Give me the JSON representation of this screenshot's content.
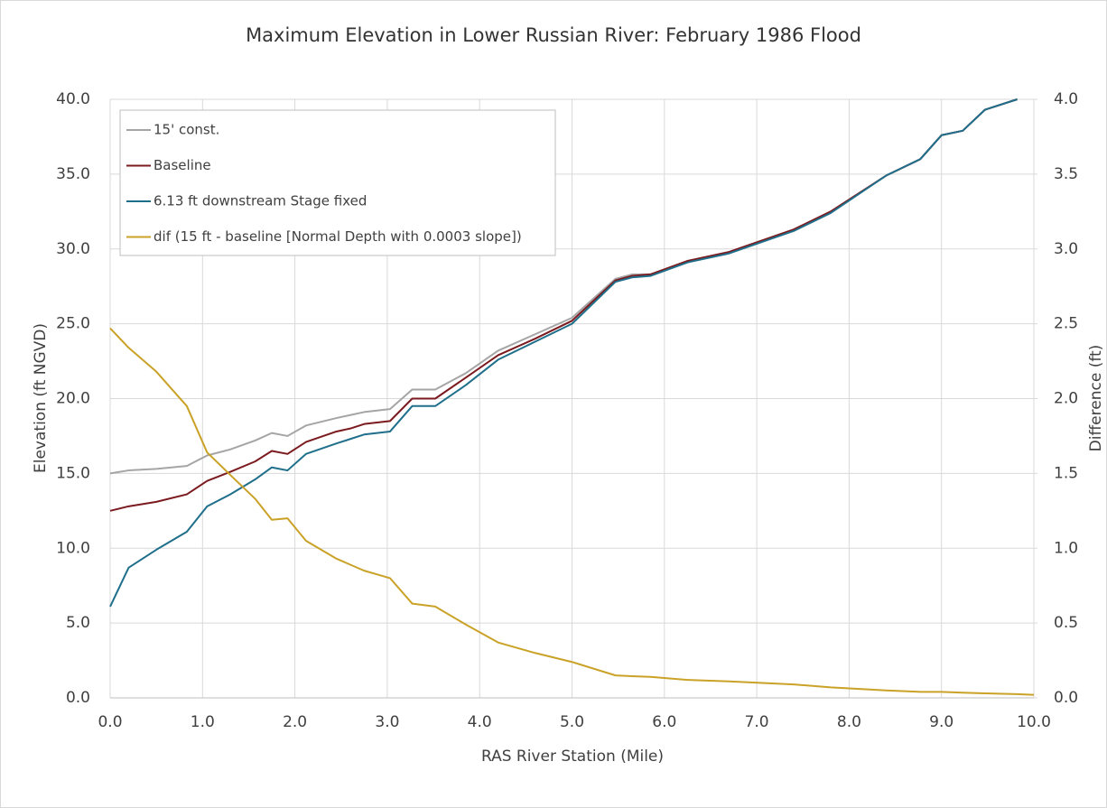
{
  "chart_data": {
    "type": "line",
    "title": "Maximum Elevation in Lower Russian River: February 1986 Flood",
    "x_label": "RAS River Station (Mile)",
    "y_label": "Elevation (ft NGVD)",
    "y2_label": "Difference (ft)",
    "x": [
      0,
      0.2,
      0.5,
      0.83,
      1.05,
      1.3,
      1.57,
      1.75,
      1.92,
      2.12,
      2.45,
      2.6,
      2.75,
      3.03,
      3.27,
      3.52,
      3.85,
      4.2,
      4.6,
      5.0,
      5.47,
      5.65,
      5.85,
      6.25,
      6.7,
      7.4,
      7.8,
      8.4,
      8.77,
      9.0,
      9.23,
      9.47,
      9.82,
      10.0
    ],
    "series": [
      {
        "name": "15' const.",
        "color": "#a5a5a5",
        "values": [
          15.0,
          15.2,
          15.3,
          15.5,
          16.2,
          16.6,
          17.2,
          17.7,
          17.5,
          18.2,
          18.7,
          18.9,
          19.1,
          19.3,
          20.6,
          20.6,
          21.7,
          23.2,
          24.3,
          25.4,
          28.0,
          28.3,
          28.3,
          29.2,
          29.8,
          31.3,
          32.5,
          34.9,
          36.0,
          37.6,
          37.9,
          39.3,
          40.0,
          null
        ]
      },
      {
        "name": "Baseline",
        "color": "#7b1a1f",
        "values": [
          12.5,
          12.8,
          13.1,
          13.6,
          14.5,
          15.1,
          15.8,
          16.5,
          16.3,
          17.1,
          17.8,
          18.0,
          18.3,
          18.5,
          20.0,
          20.0,
          21.4,
          22.9,
          24.0,
          25.2,
          27.9,
          28.2,
          28.3,
          29.2,
          29.8,
          31.3,
          32.5,
          34.9,
          36.0,
          37.6,
          37.9,
          39.3,
          40.0,
          null
        ]
      },
      {
        "name": "6.13 ft downstream Stage fixed",
        "color": "#1f6f8b",
        "values": [
          6.1,
          8.7,
          9.9,
          11.1,
          12.8,
          13.6,
          14.6,
          15.4,
          15.2,
          16.3,
          17.0,
          17.3,
          17.6,
          17.8,
          19.5,
          19.5,
          20.9,
          22.6,
          23.8,
          25.0,
          27.8,
          28.1,
          28.2,
          29.1,
          29.7,
          31.2,
          32.4,
          34.9,
          36.0,
          37.6,
          37.9,
          39.3,
          40.0,
          null
        ]
      },
      {
        "name": "dif (15 ft - baseline [Normal Depth with 0.0003 slope])",
        "color": "#c9a227",
        "axis": "y2",
        "values": [
          2.47,
          2.34,
          2.18,
          1.95,
          1.64,
          1.49,
          1.33,
          1.19,
          1.2,
          1.05,
          0.93,
          0.89,
          0.85,
          0.8,
          0.63,
          0.61,
          0.49,
          0.37,
          0.3,
          0.24,
          0.15,
          0.145,
          0.14,
          0.12,
          0.11,
          0.09,
          0.07,
          0.05,
          0.04,
          0.04,
          0.035,
          0.03,
          0.025,
          0.02
        ]
      }
    ],
    "xlim": [
      0,
      10
    ],
    "xticks": [
      {
        "value": 0,
        "label": "0.0"
      },
      {
        "value": 1,
        "label": "1.0"
      },
      {
        "value": 2,
        "label": "2.0"
      },
      {
        "value": 3,
        "label": "3.0"
      },
      {
        "value": 4,
        "label": "4.0"
      },
      {
        "value": 5,
        "label": "5.0"
      },
      {
        "value": 6,
        "label": "6.0"
      },
      {
        "value": 7,
        "label": "7.0"
      },
      {
        "value": 8,
        "label": "8.0"
      },
      {
        "value": 9,
        "label": "9.0"
      },
      {
        "value": 10,
        "label": "10.0"
      }
    ],
    "ylim": [
      0,
      40
    ],
    "yticks": [
      {
        "value": 0,
        "label": "0.0"
      },
      {
        "value": 5,
        "label": "5.0"
      },
      {
        "value": 10,
        "label": "10.0"
      },
      {
        "value": 15,
        "label": "15.0"
      },
      {
        "value": 20,
        "label": "20.0"
      },
      {
        "value": 25,
        "label": "25.0"
      },
      {
        "value": 30,
        "label": "30.0"
      },
      {
        "value": 35,
        "label": "35.0"
      },
      {
        "value": 40,
        "label": "40.0"
      }
    ],
    "y2lim": [
      0,
      4
    ],
    "y2ticks": [
      {
        "value": 0,
        "label": "0.0"
      },
      {
        "value": 0.5,
        "label": "0.5"
      },
      {
        "value": 1,
        "label": "1.0"
      },
      {
        "value": 1.5,
        "label": "1.5"
      },
      {
        "value": 2,
        "label": "2.0"
      },
      {
        "value": 2.5,
        "label": "2.5"
      },
      {
        "value": 3,
        "label": "3.0"
      },
      {
        "value": 3.5,
        "label": "3.5"
      },
      {
        "value": 4,
        "label": "4.0"
      }
    ],
    "grid": true,
    "legend": "upper left"
  }
}
